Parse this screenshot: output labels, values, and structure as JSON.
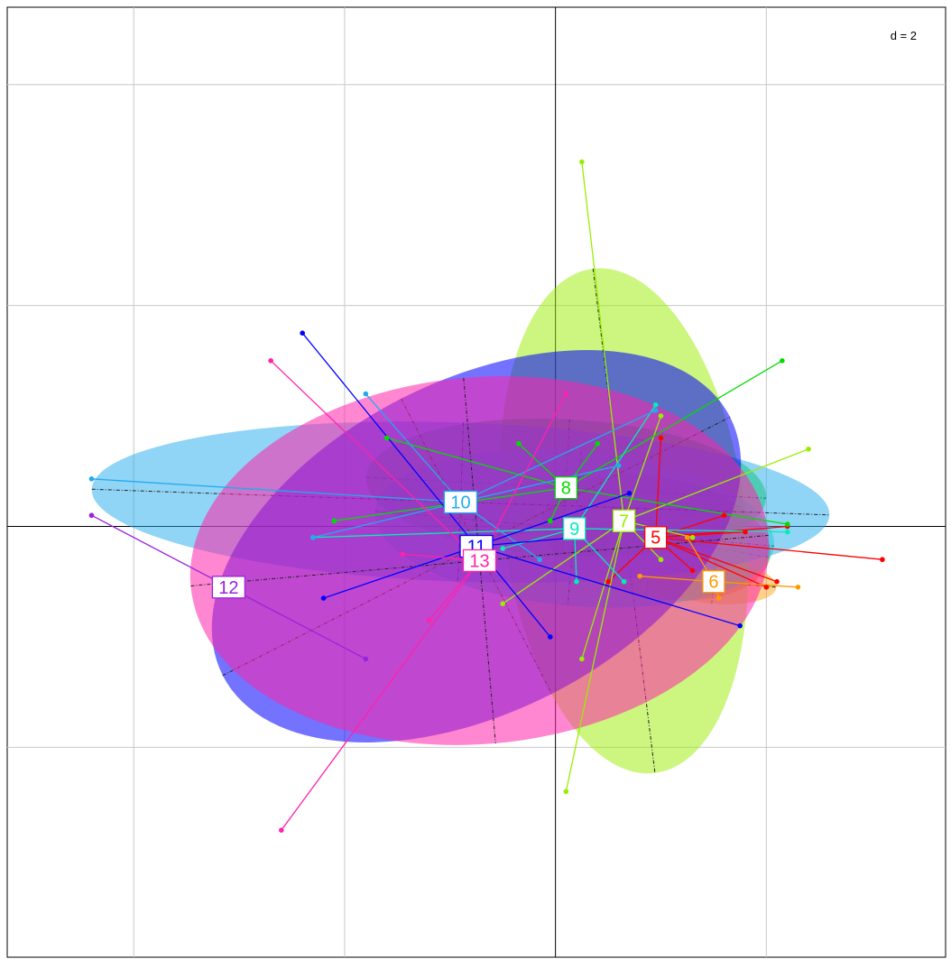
{
  "chart_data": {
    "type": "scatter",
    "title": "",
    "xlabel": "",
    "ylabel": "",
    "scale_label": "d = 2",
    "xlim": [
      -5.2,
      3.7
    ],
    "ylim": [
      -3.9,
      4.7
    ],
    "grid": true,
    "grid_step": 2,
    "groups": [
      {
        "name": "5",
        "color": "#ff0000",
        "center": [
          0.95,
          -0.1
        ],
        "ellipse": {
          "rx": 1.1,
          "ry": 0.55,
          "angle": -10,
          "alpha": 0.45
        },
        "points": [
          [
            2.1,
            -0.5
          ],
          [
            2.2,
            0
          ],
          [
            1.6,
            0.1
          ],
          [
            1.3,
            -0.4
          ],
          [
            1.8,
            -0.05
          ],
          [
            3.1,
            -0.3
          ],
          [
            0.5,
            -0.5
          ],
          [
            1.0,
            0.8
          ],
          [
            2.0,
            -0.55
          ]
        ]
      },
      {
        "name": "6",
        "color": "#ff9900",
        "center": [
          1.5,
          -0.5
        ],
        "ellipse": {
          "rx": 0.6,
          "ry": 0.2,
          "angle": -5,
          "alpha": 0.45
        },
        "points": [
          [
            0.8,
            -0.45
          ],
          [
            2.3,
            -0.55
          ],
          [
            1.25,
            -0.1
          ],
          [
            1.55,
            -0.65
          ]
        ]
      },
      {
        "name": "7",
        "color": "#99ee00",
        "center": [
          0.65,
          0.05
        ],
        "ellipse": {
          "rx": 1.15,
          "ry": 2.3,
          "angle": 7,
          "alpha": 0.5
        },
        "points": [
          [
            0.25,
            3.3
          ],
          [
            1.0,
            1.0
          ],
          [
            2.4,
            0.7
          ],
          [
            -0.5,
            -0.7
          ],
          [
            0.25,
            -1.2
          ],
          [
            0.1,
            -2.4
          ],
          [
            1.3,
            -0.1
          ],
          [
            1.0,
            -0.3
          ]
        ]
      },
      {
        "name": "8",
        "color": "#00dd00",
        "center": [
          0.1,
          0.35
        ],
        "ellipse": {
          "rx": 1.9,
          "ry": 0.62,
          "angle": -3,
          "alpha": 0.5
        },
        "points": [
          [
            2.15,
            1.5
          ],
          [
            -1.6,
            0.8
          ],
          [
            -2.1,
            0.05
          ],
          [
            -0.35,
            0.75
          ],
          [
            2.2,
            0.02
          ],
          [
            0.4,
            0.75
          ],
          [
            -0.05,
            0.05
          ]
        ]
      },
      {
        "name": "9",
        "color": "#00eebb",
        "center": [
          0.18,
          -0.02
        ],
        "ellipse": {
          "rx": 1.9,
          "ry": 0.7,
          "angle": -5,
          "alpha": 0.45
        },
        "points": [
          [
            0.95,
            1.1
          ],
          [
            2.2,
            -0.05
          ],
          [
            0.65,
            -0.5
          ],
          [
            0.2,
            -0.5
          ],
          [
            -0.5,
            -0.2
          ],
          [
            -2.3,
            -0.1
          ]
        ]
      },
      {
        "name": "10",
        "color": "#22aaee",
        "center": [
          -0.9,
          0.22
        ],
        "ellipse": {
          "rx": 3.5,
          "ry": 0.72,
          "angle": -2,
          "alpha": 0.5
        },
        "points": [
          [
            -4.4,
            0.43
          ],
          [
            -1.8,
            1.2
          ],
          [
            -2.3,
            -0.1
          ],
          [
            0.95,
            1.05
          ],
          [
            0.6,
            0.55
          ],
          [
            -0.15,
            -0.3
          ]
        ]
      },
      {
        "name": "11",
        "color": "#0000ff",
        "center": [
          -0.75,
          -0.18
        ],
        "ellipse": {
          "rx": 2.7,
          "ry": 1.5,
          "angle": 27,
          "alpha": 0.55
        },
        "points": [
          [
            -2.4,
            1.75
          ],
          [
            -2.2,
            -0.65
          ],
          [
            -0.05,
            -1.0
          ],
          [
            1.75,
            -0.9
          ],
          [
            0.7,
            0.3
          ],
          [
            0.2,
            -0.1
          ]
        ]
      },
      {
        "name": "12",
        "color": "#9922dd",
        "center": [
          -3.1,
          -0.55
        ],
        "ellipse": {
          "rx": 0,
          "ry": 0,
          "angle": 0,
          "alpha": 0
        },
        "points": [
          [
            -4.4,
            0.1
          ],
          [
            -1.8,
            -1.2
          ]
        ]
      },
      {
        "name": "13",
        "color": "#ff22aa",
        "center": [
          -0.72,
          -0.31
        ],
        "ellipse": {
          "rx": 2.75,
          "ry": 1.66,
          "angle": 5,
          "alpha": 0.55
        },
        "points": [
          [
            -2.7,
            1.5
          ],
          [
            0.1,
            1.2
          ],
          [
            -2.6,
            -2.75
          ],
          [
            -1.2,
            -0.85
          ],
          [
            -1.45,
            -0.25
          ]
        ]
      }
    ]
  }
}
